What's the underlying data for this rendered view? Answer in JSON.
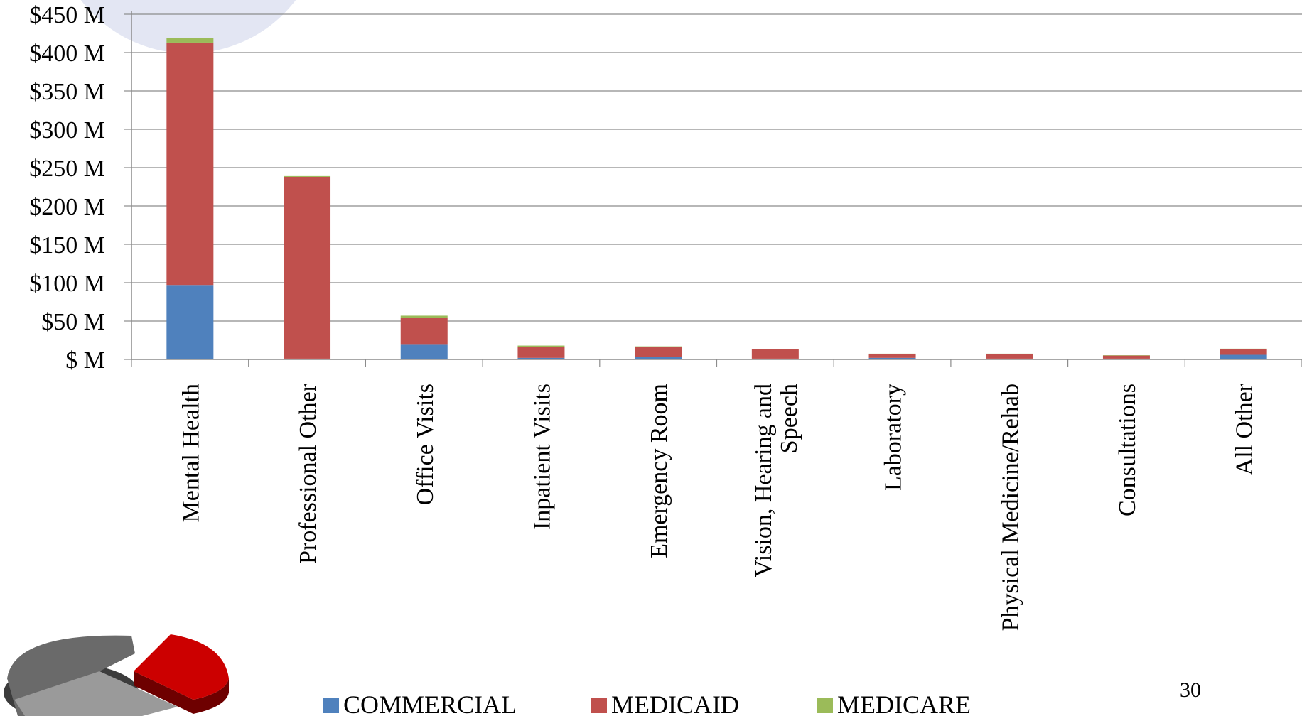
{
  "page_number": "30",
  "colors": {
    "commercial": "#4f81bd",
    "medicaid": "#c0504d",
    "medicare": "#9bbb59",
    "grid": "#8c8c8c",
    "decor_circle": "#e3e6f3",
    "pie_gray": "#6a6a6a",
    "pie_red": "#cc0000"
  },
  "chart_data": {
    "type": "bar",
    "stacked": true,
    "categories": [
      "Mental Health",
      "Professional Other",
      "Office Visits",
      "Inpatient Visits",
      "Emergency Room",
      "Vision, Hearing and Speech",
      "Laboratory",
      "Physical Medicine/Rehab",
      "Consultations",
      "All Other"
    ],
    "series": [
      {
        "name": "COMMERCIAL",
        "values": [
          97,
          1,
          20,
          2,
          3,
          1,
          2,
          1,
          1,
          6
        ]
      },
      {
        "name": "MEDICAID",
        "values": [
          316,
          237,
          34,
          14,
          13,
          12,
          5,
          6,
          4,
          7
        ]
      },
      {
        "name": "MEDICARE",
        "values": [
          6,
          1,
          3,
          2,
          1,
          0.5,
          0.5,
          0.5,
          0.5,
          1
        ]
      }
    ],
    "y_ticks": [
      "$ M",
      "$50 M",
      "$100 M",
      "$150 M",
      "$200 M",
      "$250 M",
      "$300 M",
      "$350 M",
      "$400 M",
      "$450 M"
    ],
    "ylim": [
      0,
      450
    ],
    "grid": true,
    "legend_position": "bottom"
  }
}
